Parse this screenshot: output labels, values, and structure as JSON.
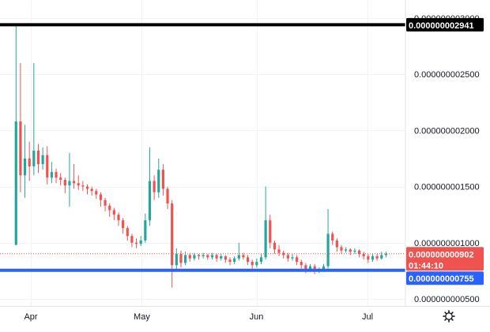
{
  "chart_data": {
    "type": "candlestick",
    "y_ticks": [
      "0.000000003000",
      "0.000000002500",
      "0.000000002000",
      "0.000000001500",
      "0.000000001000",
      "0.000000000500"
    ],
    "y_tick_values": [
      3e-09,
      2.5e-09,
      2e-09,
      1.5e-09,
      1e-09,
      5e-10
    ],
    "x_ticks": [
      "Apr",
      "May",
      "Jun",
      "Jul"
    ],
    "x_tick_dates": [
      "2022-04-01",
      "2022-05-01",
      "2022-06-01",
      "2022-07-01"
    ],
    "x_range": [
      "2022-03-28",
      "2022-07-12"
    ],
    "y_range": [
      4.4e-10,
      3.05e-09
    ],
    "horizontal_lines": [
      {
        "label": "0.000000002941",
        "value": 2.941e-09,
        "color": "#000000"
      },
      {
        "label": "0.000000000755",
        "value": 7.55e-10,
        "color": "#2962ff"
      }
    ],
    "last_price": {
      "label": "0.000000000902",
      "value": 9.02e-10,
      "countdown": "01:44:10",
      "color": "#ef5350"
    },
    "colors": {
      "up": "#26a69a",
      "down": "#ef5350",
      "grid": "#f0f3fa"
    },
    "settings_icon": "gear-icon",
    "candles_ohlc_e10": [
      [
        9.8,
        20.8,
        29.4,
        9.8
      ],
      [
        20.8,
        16.0,
        26.0,
        14.5
      ],
      [
        16.0,
        17.5,
        20.5,
        14.0
      ],
      [
        17.5,
        16.8,
        19.0,
        15.5
      ],
      [
        16.8,
        18.2,
        26.0,
        16.0
      ],
      [
        18.2,
        17.0,
        18.8,
        16.2
      ],
      [
        17.0,
        17.8,
        18.5,
        16.5
      ],
      [
        17.8,
        15.8,
        18.6,
        15.2
      ],
      [
        15.8,
        16.3,
        17.2,
        15.3
      ],
      [
        16.3,
        15.8,
        16.6,
        15.3
      ],
      [
        15.8,
        15.6,
        16.2,
        15.1
      ],
      [
        15.6,
        15.1,
        15.8,
        14.4
      ],
      [
        15.1,
        15.5,
        18.0,
        13.2
      ],
      [
        15.5,
        15.3,
        17.0,
        14.8
      ],
      [
        15.3,
        15.1,
        16.0,
        14.7
      ],
      [
        15.1,
        15.0,
        15.5,
        14.6
      ],
      [
        15.0,
        14.8,
        15.2,
        14.3
      ],
      [
        14.8,
        14.6,
        15.0,
        14.2
      ],
      [
        14.6,
        14.3,
        14.8,
        13.9
      ],
      [
        14.3,
        13.8,
        14.5,
        13.2
      ],
      [
        13.8,
        13.3,
        14.0,
        12.8
      ],
      [
        13.3,
        12.9,
        13.5,
        12.3
      ],
      [
        12.9,
        12.5,
        13.1,
        12.0
      ],
      [
        12.5,
        12.0,
        12.7,
        11.5
      ],
      [
        12.0,
        11.3,
        12.2,
        10.8
      ],
      [
        11.3,
        10.6,
        11.5,
        10.2
      ],
      [
        10.6,
        10.0,
        10.8,
        9.6
      ],
      [
        10.0,
        9.9,
        10.4,
        9.5
      ],
      [
        9.9,
        10.2,
        10.6,
        9.7
      ],
      [
        10.2,
        12.0,
        12.6,
        10.0
      ],
      [
        12.0,
        15.5,
        18.5,
        11.5
      ],
      [
        15.5,
        14.5,
        16.0,
        13.8
      ],
      [
        14.5,
        16.5,
        17.5,
        14.0
      ],
      [
        16.5,
        14.8,
        17.0,
        14.2
      ],
      [
        14.8,
        13.5,
        15.0,
        13.0
      ],
      [
        13.5,
        8.0,
        13.8,
        6.0
      ],
      [
        8.0,
        9.0,
        9.5,
        7.5
      ],
      [
        9.0,
        8.2,
        9.3,
        7.8
      ],
      [
        8.2,
        8.9,
        9.2,
        8.0
      ],
      [
        8.9,
        8.6,
        9.1,
        8.3
      ],
      [
        8.6,
        8.9,
        9.1,
        8.4
      ],
      [
        8.9,
        8.8,
        9.0,
        8.5
      ],
      [
        8.8,
        8.9,
        9.1,
        8.6
      ],
      [
        8.9,
        8.7,
        9.0,
        8.5
      ],
      [
        8.7,
        8.9,
        9.1,
        8.5
      ],
      [
        8.9,
        8.6,
        9.0,
        8.3
      ],
      [
        8.6,
        8.8,
        9.0,
        8.4
      ],
      [
        8.8,
        8.5,
        8.9,
        8.2
      ],
      [
        8.5,
        8.3,
        8.7,
        8.0
      ],
      [
        8.3,
        8.6,
        8.8,
        8.1
      ],
      [
        8.6,
        8.9,
        10.0,
        8.4
      ],
      [
        8.9,
        8.7,
        9.1,
        8.5
      ],
      [
        8.7,
        8.3,
        8.9,
        8.0
      ],
      [
        8.3,
        8.0,
        8.5,
        7.7
      ],
      [
        8.0,
        8.3,
        8.6,
        7.8
      ],
      [
        8.3,
        8.7,
        9.0,
        8.1
      ],
      [
        8.7,
        12.0,
        15.0,
        8.5
      ],
      [
        12.0,
        10.0,
        12.5,
        9.5
      ],
      [
        10.0,
        9.4,
        10.2,
        9.0
      ],
      [
        9.4,
        9.1,
        9.8,
        8.8
      ],
      [
        9.1,
        8.9,
        9.3,
        8.6
      ],
      [
        8.9,
        8.6,
        9.1,
        8.3
      ],
      [
        8.6,
        8.7,
        9.0,
        8.4
      ],
      [
        8.7,
        8.3,
        8.9,
        8.0
      ],
      [
        8.3,
        8.0,
        8.5,
        7.7
      ],
      [
        8.0,
        7.6,
        8.2,
        7.3
      ],
      [
        7.6,
        7.9,
        8.1,
        7.4
      ],
      [
        7.9,
        7.5,
        8.1,
        7.2
      ],
      [
        7.5,
        7.6,
        7.8,
        7.3
      ],
      [
        7.6,
        7.9,
        8.1,
        7.4
      ],
      [
        7.9,
        10.8,
        13.0,
        7.7
      ],
      [
        10.8,
        10.2,
        11.0,
        9.8
      ],
      [
        10.2,
        9.6,
        10.4,
        9.2
      ],
      [
        9.6,
        9.3,
        9.8,
        9.0
      ],
      [
        9.3,
        9.4,
        9.6,
        9.1
      ],
      [
        9.4,
        9.2,
        9.5,
        8.9
      ],
      [
        9.2,
        9.3,
        9.5,
        9.0
      ],
      [
        9.3,
        9.0,
        9.4,
        8.7
      ],
      [
        9.0,
        8.8,
        9.2,
        8.5
      ],
      [
        8.8,
        8.5,
        9.0,
        8.2
      ],
      [
        8.5,
        8.8,
        9.0,
        8.3
      ],
      [
        8.8,
        8.6,
        9.0,
        8.4
      ],
      [
        8.6,
        8.9,
        9.2,
        8.5
      ],
      [
        8.9,
        9.02,
        9.2,
        8.7
      ]
    ]
  }
}
